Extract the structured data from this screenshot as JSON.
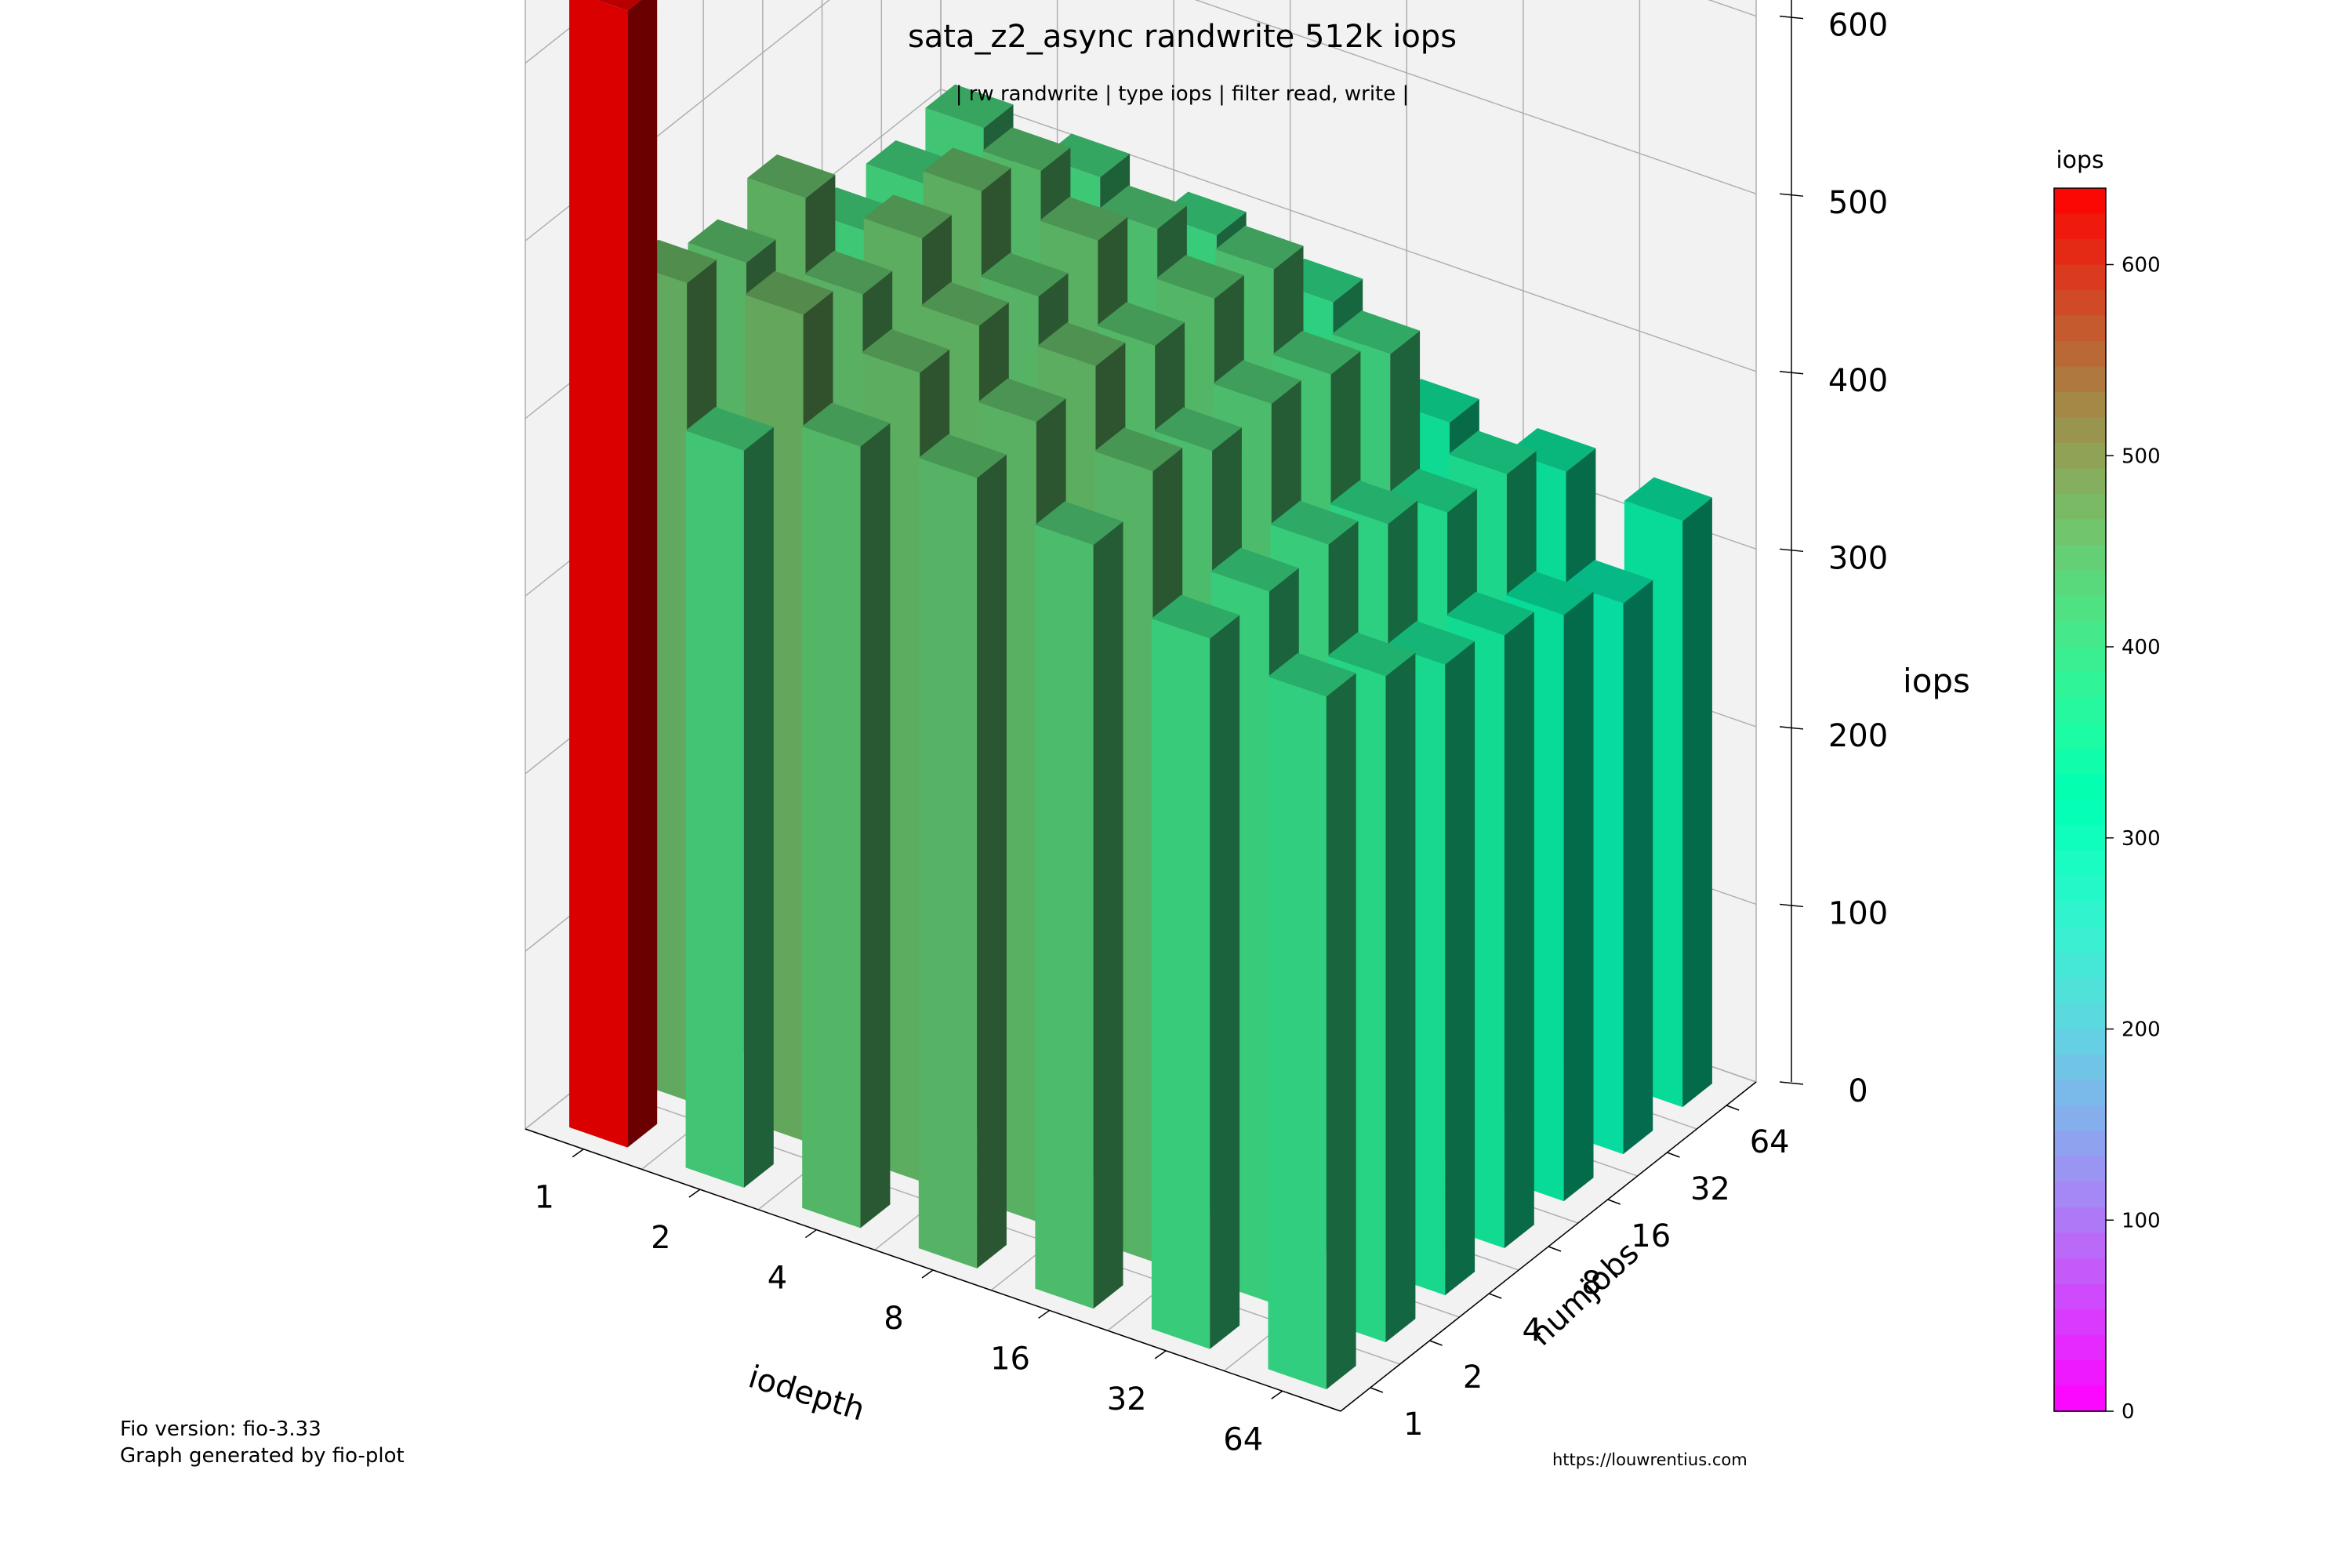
{
  "chart_data": {
    "type": "bar3d",
    "title": "sata_z2_async randwrite 512k iops",
    "subtitle": "| rw randwrite | type iops | filter read, write |",
    "xlabel": "iodepth",
    "ylabel": "numjobs",
    "zlabel": "iops",
    "x_categories": [
      "1",
      "2",
      "4",
      "8",
      "16",
      "32",
      "64"
    ],
    "y_categories": [
      "1",
      "2",
      "4",
      "8",
      "16",
      "32",
      "64"
    ],
    "z_ticks": [
      "0",
      "100",
      "200",
      "300",
      "400",
      "500",
      "600"
    ],
    "zlim": [
      0,
      640
    ],
    "values": [
      [
        640,
        415,
        440,
        445,
        430,
        400,
        390
      ],
      [
        460,
        465,
        455,
        450,
        445,
        400,
        375
      ],
      [
        445,
        450,
        455,
        455,
        430,
        400,
        355
      ],
      [
        455,
        455,
        445,
        440,
        430,
        385,
        345
      ],
      [
        410,
        455,
        450,
        440,
        420,
        365,
        330
      ],
      [
        410,
        440,
        430,
        430,
        405,
        360,
        310
      ],
      [
        415,
        410,
        400,
        385,
        340,
        335,
        330
      ]
    ],
    "colorbar": {
      "label": "iops",
      "ticks": [
        "0",
        "100",
        "200",
        "300",
        "400",
        "500",
        "600"
      ],
      "range": [
        0,
        640
      ],
      "colormap": "rainbow"
    },
    "grid": true
  },
  "footer": {
    "fio_version": "Fio version: fio-3.33",
    "generator": "Graph generated by fio-plot",
    "url": "https://louwrentius.com"
  }
}
